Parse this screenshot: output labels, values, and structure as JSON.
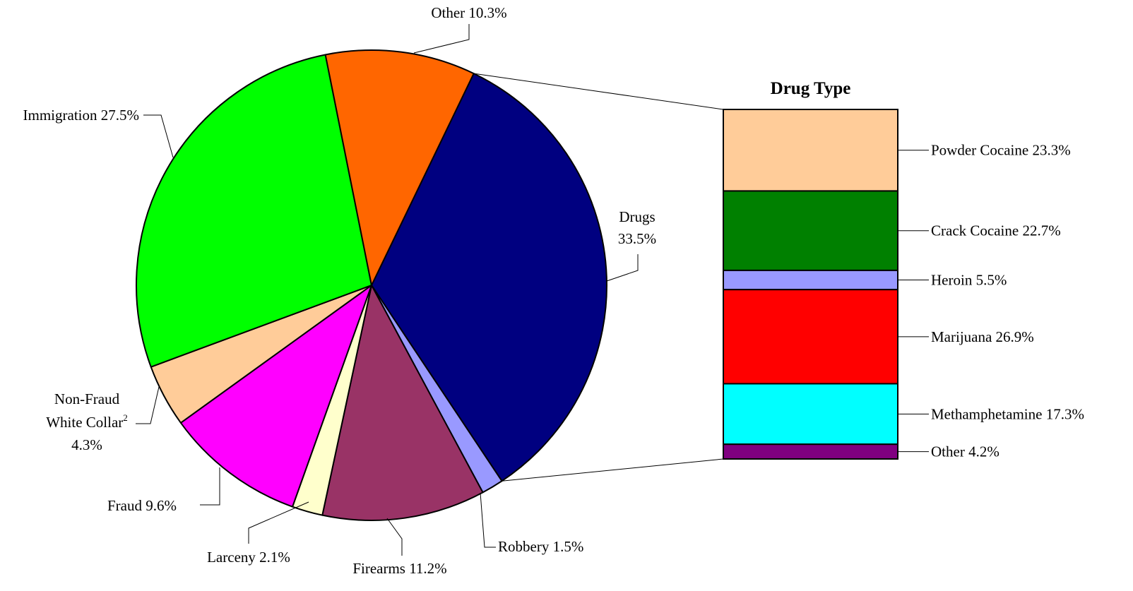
{
  "chart_data": [
    {
      "type": "pie",
      "slices": [
        {
          "label": "Drugs",
          "value": 33.5,
          "value_label": "33.5%",
          "color": "#000080"
        },
        {
          "label": "Robbery",
          "value": 1.5,
          "value_label": "1.5%",
          "color": "#9999FF"
        },
        {
          "label": "Firearms",
          "value": 11.2,
          "value_label": "11.2%",
          "color": "#993366"
        },
        {
          "label": "Larceny",
          "value": 2.1,
          "value_label": "2.1%",
          "color": "#FFFFCC"
        },
        {
          "label": "Fraud",
          "value": 9.6,
          "value_label": "9.6%",
          "color": "#FF00FF"
        },
        {
          "label": "Non-Fraud",
          "label2": "White Collar",
          "footnote": "2",
          "value": 4.3,
          "value_label": "4.3%",
          "color": "#FFCC99"
        },
        {
          "label": "Immigration",
          "value": 27.5,
          "value_label": "27.5%",
          "color": "#00FF00"
        },
        {
          "label": "Other",
          "value": 10.3,
          "value_label": "10.3%",
          "color": "#FF6600"
        }
      ]
    },
    {
      "type": "bar",
      "stacked": true,
      "title": "Drug Type",
      "segments": [
        {
          "label": "Powder Cocaine",
          "value": 23.3,
          "value_label": "23.3%",
          "color": "#FFCC99"
        },
        {
          "label": "Crack Cocaine",
          "value": 22.7,
          "value_label": "22.7%",
          "color": "#008000"
        },
        {
          "label": "Heroin",
          "value": 5.5,
          "value_label": "5.5%",
          "color": "#9999FF"
        },
        {
          "label": "Marijuana",
          "value": 26.9,
          "value_label": "26.9%",
          "color": "#FF0000"
        },
        {
          "label": "Methamphetamine",
          "value": 17.3,
          "value_label": "17.3%",
          "color": "#00FFFF"
        },
        {
          "label": "Other",
          "value": 4.2,
          "value_label": "4.2%",
          "color": "#800080"
        }
      ]
    }
  ]
}
